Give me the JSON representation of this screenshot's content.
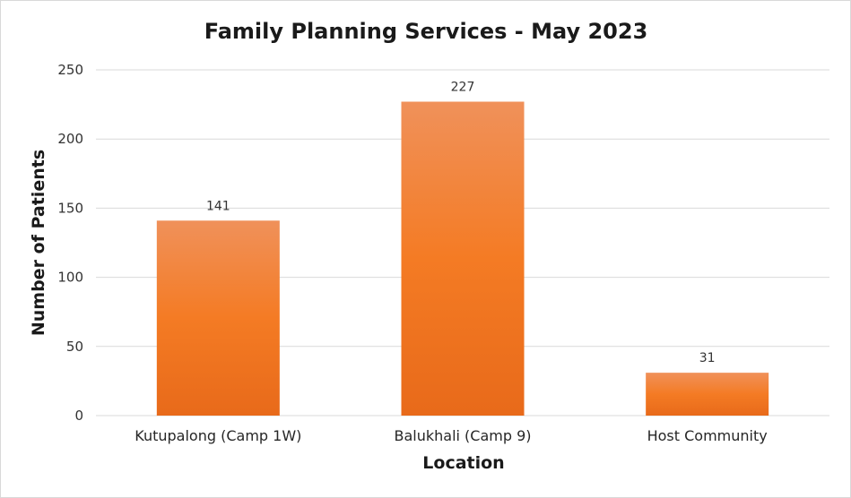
{
  "chart_data": {
    "type": "bar",
    "title": "Family Planning Services - May 2023",
    "xlabel": "Location",
    "ylabel": "Number of Patients",
    "categories": [
      "Kutupalong (Camp 1W)",
      "Balukhali (Camp 9)",
      "Host Community"
    ],
    "values": [
      141,
      227,
      31
    ],
    "data_labels": [
      "141",
      "227",
      "31"
    ],
    "ylim": [
      0,
      250
    ],
    "yticks": [
      0,
      50,
      100,
      150,
      200,
      250
    ],
    "grid": true,
    "legend": "none",
    "bar_color_top": "#f0915a",
    "bar_color_mid": "#f47b24",
    "bar_color_bottom": "#e86a1a",
    "grid_color": "#d9d9d9"
  }
}
